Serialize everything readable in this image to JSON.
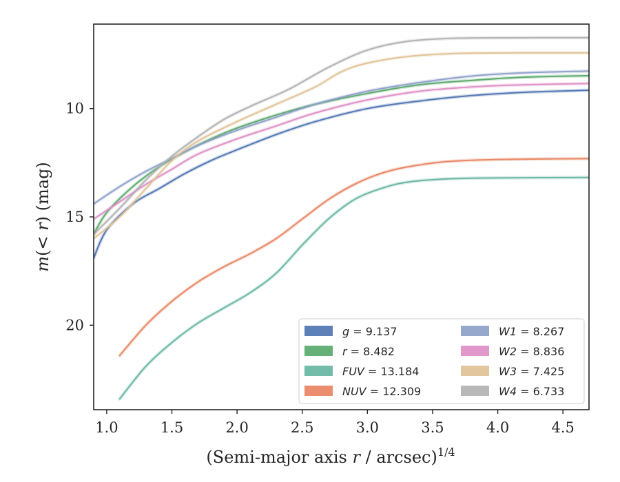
{
  "chart_data": {
    "type": "line",
    "xlabel": "(Semi-major axis r / arcsec)",
    "xlabel_parts": {
      "open": "(Semi-major axis ",
      "var": "r",
      "rest": " / arcsec)",
      "sup": "1/4"
    },
    "ylabel_parts": {
      "m": "m",
      "open": "(",
      "lt": "< ",
      "r": "r",
      "close": ")",
      "unit": " (mag)"
    },
    "xlim": [
      0.9,
      4.7
    ],
    "ylim": [
      23.9,
      6.1
    ],
    "y_inverted": true,
    "xticks": [
      1.0,
      1.5,
      2.0,
      2.5,
      3.0,
      3.5,
      4.0,
      4.5
    ],
    "xtick_labels": [
      "1.0",
      "1.5",
      "2.0",
      "2.5",
      "3.0",
      "3.5",
      "4.0",
      "4.5"
    ],
    "yticks": [
      10,
      15,
      20
    ],
    "ytick_labels": [
      "10",
      "15",
      "20"
    ],
    "legend_placement": "lower-right",
    "grid": false,
    "series": [
      {
        "name": "g",
        "value": "9.137",
        "color": "#4c72b0",
        "x": [
          0.9,
          1.0,
          1.2,
          1.4,
          1.6,
          1.8,
          2.0,
          2.3,
          2.6,
          3.0,
          3.4,
          3.8,
          4.2,
          4.7
        ],
        "y": [
          16.9,
          15.6,
          14.4,
          13.7,
          13.0,
          12.4,
          11.9,
          11.2,
          10.6,
          10.0,
          9.65,
          9.4,
          9.25,
          9.15
        ]
      },
      {
        "name": "r",
        "value": "8.482",
        "color": "#55a868",
        "x": [
          0.9,
          1.0,
          1.2,
          1.4,
          1.6,
          1.8,
          2.0,
          2.3,
          2.6,
          3.0,
          3.4,
          3.8,
          4.2,
          4.7
        ],
        "y": [
          15.8,
          14.8,
          13.6,
          12.7,
          12.0,
          11.4,
          10.9,
          10.3,
          9.8,
          9.3,
          8.9,
          8.7,
          8.55,
          8.48
        ]
      },
      {
        "name": "FUV",
        "value": "13.184",
        "color": "#64b5a0",
        "x": [
          1.1,
          1.3,
          1.5,
          1.7,
          1.9,
          2.1,
          2.3,
          2.5,
          2.7,
          2.9,
          3.1,
          3.3,
          3.6,
          4.0,
          4.7
        ],
        "y": [
          23.4,
          21.9,
          20.8,
          19.9,
          19.2,
          18.5,
          17.6,
          16.3,
          15.1,
          14.2,
          13.7,
          13.4,
          13.25,
          13.2,
          13.18
        ]
      },
      {
        "name": "NUV",
        "value": "12.309",
        "color": "#e8825f",
        "x": [
          1.1,
          1.3,
          1.5,
          1.7,
          1.9,
          2.1,
          2.3,
          2.5,
          2.7,
          2.9,
          3.1,
          3.3,
          3.6,
          4.0,
          4.7
        ],
        "y": [
          21.4,
          20.0,
          18.9,
          18.0,
          17.3,
          16.7,
          16.0,
          15.1,
          14.2,
          13.5,
          13.0,
          12.7,
          12.45,
          12.35,
          12.31
        ]
      },
      {
        "name": "W1",
        "value": "8.267",
        "color": "#8c9ec8",
        "x": [
          0.9,
          1.1,
          1.3,
          1.5,
          1.7,
          2.0,
          2.3,
          2.6,
          3.0,
          3.4,
          3.8,
          4.2,
          4.7
        ],
        "y": [
          14.4,
          13.6,
          12.9,
          12.3,
          11.7,
          11.0,
          10.4,
          9.8,
          9.2,
          8.8,
          8.5,
          8.35,
          8.27
        ]
      },
      {
        "name": "W2",
        "value": "8.836",
        "color": "#dd8dc4",
        "x": [
          0.9,
          1.1,
          1.3,
          1.5,
          1.7,
          2.0,
          2.3,
          2.6,
          3.0,
          3.4,
          3.8,
          4.2,
          4.7
        ],
        "y": [
          15.1,
          14.3,
          13.5,
          12.8,
          12.1,
          11.4,
          10.8,
          10.2,
          9.6,
          9.2,
          9.0,
          8.9,
          8.84
        ]
      },
      {
        "name": "W3",
        "value": "7.425",
        "color": "#dfc194",
        "x": [
          0.9,
          1.1,
          1.3,
          1.5,
          1.7,
          2.0,
          2.3,
          2.6,
          2.8,
          3.0,
          3.3,
          3.7,
          4.2,
          4.7
        ],
        "y": [
          16.0,
          15.0,
          13.7,
          12.4,
          11.5,
          10.6,
          9.8,
          9.0,
          8.3,
          7.9,
          7.6,
          7.45,
          7.43,
          7.43
        ]
      },
      {
        "name": "W4",
        "value": "6.733",
        "color": "#b0b0b0",
        "x": [
          0.9,
          1.1,
          1.3,
          1.5,
          1.7,
          1.9,
          2.1,
          2.4,
          2.7,
          3.0,
          3.3,
          3.7,
          4.3,
          4.7
        ],
        "y": [
          15.8,
          14.6,
          13.3,
          12.2,
          11.3,
          10.5,
          9.9,
          9.1,
          8.1,
          7.3,
          6.9,
          6.75,
          6.73,
          6.73
        ]
      }
    ]
  }
}
